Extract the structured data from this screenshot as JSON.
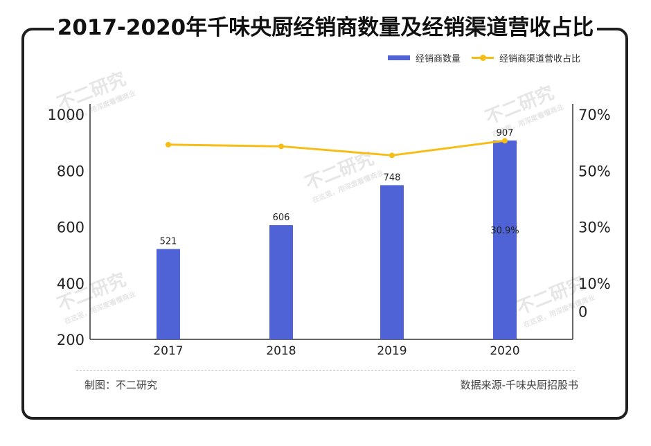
{
  "title": "2017-2020年千味央厨经销商数量及经销渠道营收占比",
  "legend": {
    "bar_label": "经销商数量",
    "line_label": "经销商渠道营收占比"
  },
  "colors": {
    "bar": "#4f63d6",
    "line": "#f5bd16",
    "axis": "#333333"
  },
  "chart_data": {
    "type": "bar+line",
    "categories": [
      "2017",
      "2018",
      "2019",
      "2020"
    ],
    "series": [
      {
        "name": "经销商数量",
        "type": "bar",
        "axis": "left",
        "values": [
          521,
          606,
          748,
          907
        ]
      },
      {
        "name": "经销商渠道营收占比",
        "type": "line",
        "axis": "right",
        "values": [
          59.2,
          58.6,
          55.4,
          60.6
        ]
      }
    ],
    "bar_labels": [
      "521",
      "606",
      "748",
      "907"
    ],
    "annotation": "30.9%",
    "left_axis": {
      "ticks": [
        "1000",
        "800",
        "600",
        "400",
        "200"
      ],
      "range": [
        200,
        1000
      ]
    },
    "right_axis": {
      "ticks": [
        "70%",
        "50%",
        "30%",
        "10%",
        "0"
      ],
      "range": [
        -10,
        70
      ]
    }
  },
  "footer": {
    "maker": "制图：不二研究",
    "source": "数据来源-千味央厨招股书"
  },
  "watermark": {
    "text": "不二研究",
    "sub": "在这里，用深度看懂商业"
  }
}
